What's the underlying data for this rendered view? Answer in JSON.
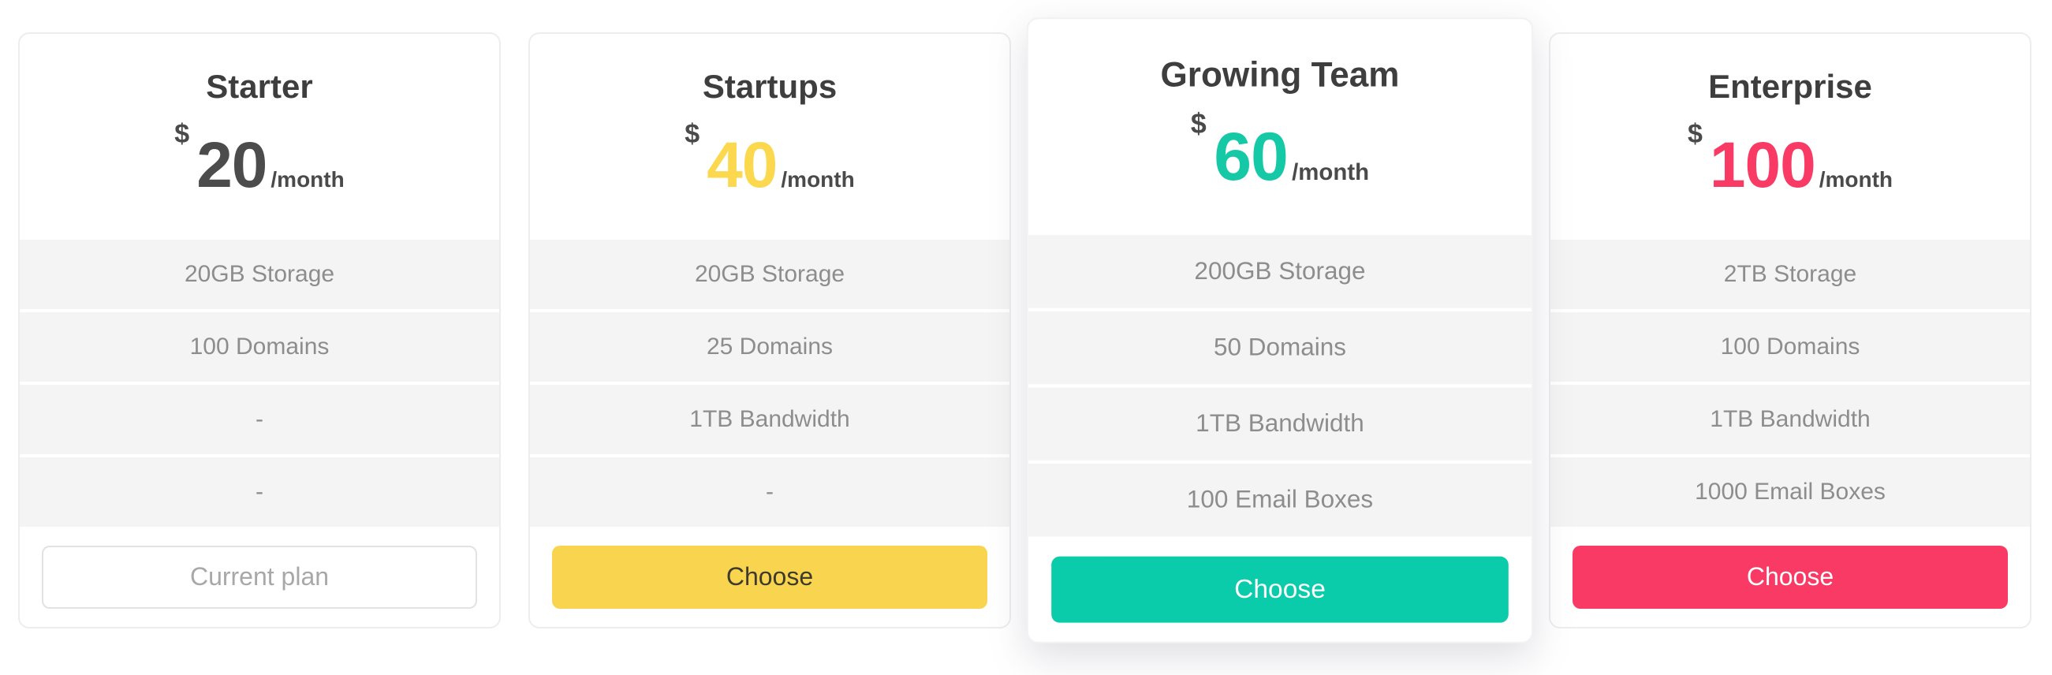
{
  "theme": {
    "page_bg": "#ffffff",
    "card_bg": "#ffffff",
    "card_border": "#ededed",
    "feature_row_bg": "#f4f4f4",
    "feature_row_divider": "#ffffff",
    "title_color": "#3e3e3e",
    "feature_text_color": "#8d8d8d",
    "price_meta_color": "#4a4a4a"
  },
  "plans": [
    {
      "name": "Starter",
      "currency": "$",
      "amount": "20",
      "period": "/month",
      "price_color": "#4c4c4c",
      "featured": false,
      "features": [
        "20GB Storage",
        "100 Domains",
        "-",
        "-"
      ],
      "button": {
        "label": "Current plan",
        "variant": "outline",
        "bg": "#ffffff",
        "text_color": "#a8a8a8",
        "border_color": "#e2e2e2"
      }
    },
    {
      "name": "Startups",
      "currency": "$",
      "amount": "40",
      "period": "/month",
      "price_color": "#fbd84e",
      "featured": false,
      "features": [
        "20GB Storage",
        "25 Domains",
        "1TB Bandwidth",
        "-"
      ],
      "button": {
        "label": "Choose",
        "variant": "solid",
        "bg": "#f9d54f",
        "text_color": "#3e3b2e",
        "border_color": ""
      }
    },
    {
      "name": "Growing Team",
      "currency": "$",
      "amount": "60",
      "period": "/month",
      "price_color": "#16c9a6",
      "featured": true,
      "features": [
        "200GB Storage",
        "50 Domains",
        "1TB Bandwidth",
        "100 Email Boxes"
      ],
      "button": {
        "label": "Choose",
        "variant": "solid",
        "bg": "#0accab",
        "text_color": "#ffffff",
        "border_color": ""
      }
    },
    {
      "name": "Enterprise",
      "currency": "$",
      "amount": "100",
      "period": "/month",
      "price_color": "#f93a64",
      "featured": false,
      "features": [
        "2TB Storage",
        "100 Domains",
        "1TB Bandwidth",
        "1000 Email Boxes"
      ],
      "button": {
        "label": "Choose",
        "variant": "solid",
        "bg": "#f93a64",
        "text_color": "#ffffff",
        "border_color": ""
      }
    }
  ]
}
